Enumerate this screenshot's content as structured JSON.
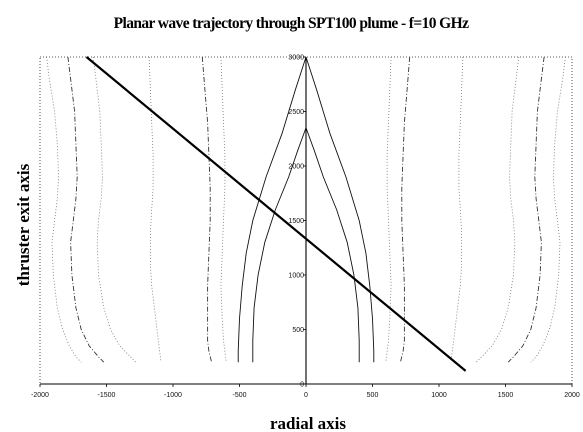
{
  "chart_data": {
    "type": "line",
    "title": "Planar wave trajectory through SPT100 plume - f=10 GHz",
    "xlabel": "radial axis",
    "ylabel": "thruster exit axis",
    "xlim": [
      -2000,
      2000
    ],
    "ylim": [
      0,
      3000
    ],
    "x_ticks": [
      -2000,
      -1500,
      -1000,
      -500,
      0,
      500,
      1000,
      1500,
      2000
    ],
    "y_ticks": [
      0,
      500,
      1000,
      1500,
      2000,
      2500,
      3000
    ],
    "x_tick_labels": [
      "-2000",
      "-1500",
      "-1000",
      "-500",
      "0",
      "500",
      "1000",
      "1500",
      "2000"
    ],
    "y_tick_labels": [
      "0",
      "500",
      "1000",
      "1500",
      "2000",
      "2500",
      "3000"
    ],
    "grid": false,
    "border": "dotted",
    "trajectory": {
      "style": "solid-thick",
      "x": [
        -1650,
        1200
      ],
      "y": [
        3000,
        120
      ]
    },
    "contours": [
      {
        "style": "dotted",
        "x": [
          -1950,
          -1930,
          -1890,
          -1870,
          -1860,
          -1870,
          -1890,
          -1910,
          -1900,
          -1870,
          -1830,
          -1780,
          -1730,
          -1690
        ],
        "y": [
          3000,
          2800,
          2500,
          2200,
          1900,
          1700,
          1500,
          1300,
          1000,
          700,
          500,
          350,
          250,
          200
        ]
      },
      {
        "style": "dash-dot",
        "x": [
          -1790,
          -1770,
          -1740,
          -1730,
          -1720,
          -1730,
          -1750,
          -1770,
          -1760,
          -1730,
          -1690,
          -1630,
          -1560,
          -1520
        ],
        "y": [
          3000,
          2800,
          2500,
          2200,
          1900,
          1700,
          1500,
          1300,
          1000,
          700,
          500,
          350,
          250,
          200
        ]
      },
      {
        "style": "dotted",
        "x": [
          -1600,
          -1580,
          -1550,
          -1540,
          -1530,
          -1540,
          -1560,
          -1570,
          -1560,
          -1520,
          -1470,
          -1400,
          -1320,
          -1280
        ],
        "y": [
          3000,
          2800,
          2500,
          2200,
          1900,
          1700,
          1500,
          1300,
          1000,
          700,
          500,
          350,
          250,
          200
        ]
      },
      {
        "style": "dotted",
        "x": [
          -1180,
          -1170,
          -1160,
          -1150,
          -1150,
          -1160,
          -1170,
          -1170,
          -1160,
          -1140,
          -1120,
          -1100,
          -1090
        ],
        "y": [
          3000,
          2700,
          2400,
          2100,
          1800,
          1600,
          1400,
          1100,
          900,
          700,
          500,
          300,
          200
        ]
      },
      {
        "style": "dash-dot",
        "x": [
          -780,
          -760,
          -740,
          -730,
          -720,
          -720,
          -730,
          -740,
          -740,
          -740,
          -730,
          -710
        ],
        "y": [
          3000,
          2700,
          2400,
          2100,
          1800,
          1500,
          1200,
          900,
          600,
          400,
          300,
          200
        ]
      },
      {
        "style": "dotted",
        "x": [
          -640,
          -630,
          -620,
          -610,
          -610,
          -620,
          -630,
          -640,
          -630,
          -620,
          -610,
          -600
        ],
        "y": [
          3000,
          2700,
          2400,
          2100,
          1800,
          1500,
          1200,
          900,
          600,
          400,
          300,
          200
        ]
      },
      {
        "style": "solid-thin",
        "x": [
          0,
          -80,
          -180,
          -300,
          -400,
          -450,
          -480,
          -500,
          -510,
          -510
        ],
        "y": [
          3000,
          2700,
          2300,
          1900,
          1500,
          1200,
          900,
          600,
          300,
          200
        ]
      },
      {
        "style": "solid-thin",
        "x": [
          0,
          80,
          180,
          300,
          400,
          450,
          480,
          500,
          510,
          510
        ],
        "y": [
          3000,
          2700,
          2300,
          1900,
          1500,
          1200,
          900,
          600,
          300,
          200
        ]
      },
      {
        "style": "solid-thin",
        "x": [
          0,
          -60,
          -130,
          -230,
          -310,
          -360,
          -390,
          -400,
          -400
        ],
        "y": [
          2350,
          2150,
          1900,
          1600,
          1300,
          1000,
          700,
          400,
          200
        ]
      },
      {
        "style": "solid-thin",
        "x": [
          0,
          60,
          130,
          230,
          310,
          360,
          390,
          400,
          400
        ],
        "y": [
          2350,
          2150,
          1900,
          1600,
          1300,
          1000,
          700,
          400,
          200
        ]
      },
      {
        "style": "dotted",
        "x": [
          640,
          630,
          620,
          610,
          610,
          620,
          630,
          640,
          630,
          620,
          610,
          600
        ],
        "y": [
          3000,
          2700,
          2400,
          2100,
          1800,
          1500,
          1200,
          900,
          600,
          400,
          300,
          200
        ]
      },
      {
        "style": "dash-dot",
        "x": [
          780,
          760,
          740,
          730,
          720,
          720,
          730,
          740,
          740,
          740,
          730,
          710
        ],
        "y": [
          3000,
          2700,
          2400,
          2100,
          1800,
          1500,
          1200,
          900,
          600,
          400,
          300,
          200
        ]
      },
      {
        "style": "dotted",
        "x": [
          1180,
          1170,
          1160,
          1150,
          1150,
          1160,
          1170,
          1170,
          1160,
          1140,
          1120,
          1100,
          1090
        ],
        "y": [
          3000,
          2700,
          2400,
          2100,
          1800,
          1600,
          1400,
          1100,
          900,
          700,
          500,
          300,
          200
        ]
      },
      {
        "style": "dotted",
        "x": [
          1600,
          1580,
          1550,
          1540,
          1530,
          1540,
          1560,
          1570,
          1560,
          1520,
          1470,
          1400,
          1320,
          1280
        ],
        "y": [
          3000,
          2800,
          2500,
          2200,
          1900,
          1700,
          1500,
          1300,
          1000,
          700,
          500,
          350,
          250,
          200
        ]
      },
      {
        "style": "dash-dot",
        "x": [
          1790,
          1770,
          1740,
          1730,
          1720,
          1730,
          1750,
          1770,
          1760,
          1730,
          1690,
          1630,
          1560,
          1520
        ],
        "y": [
          3000,
          2800,
          2500,
          2200,
          1900,
          1700,
          1500,
          1300,
          1000,
          700,
          500,
          350,
          250,
          200
        ]
      },
      {
        "style": "dotted",
        "x": [
          1950,
          1930,
          1890,
          1870,
          1860,
          1870,
          1890,
          1910,
          1900,
          1870,
          1830,
          1780,
          1730,
          1690
        ],
        "y": [
          3000,
          2800,
          2500,
          2200,
          1900,
          1700,
          1500,
          1300,
          1000,
          700,
          500,
          350,
          250,
          200
        ]
      }
    ]
  }
}
